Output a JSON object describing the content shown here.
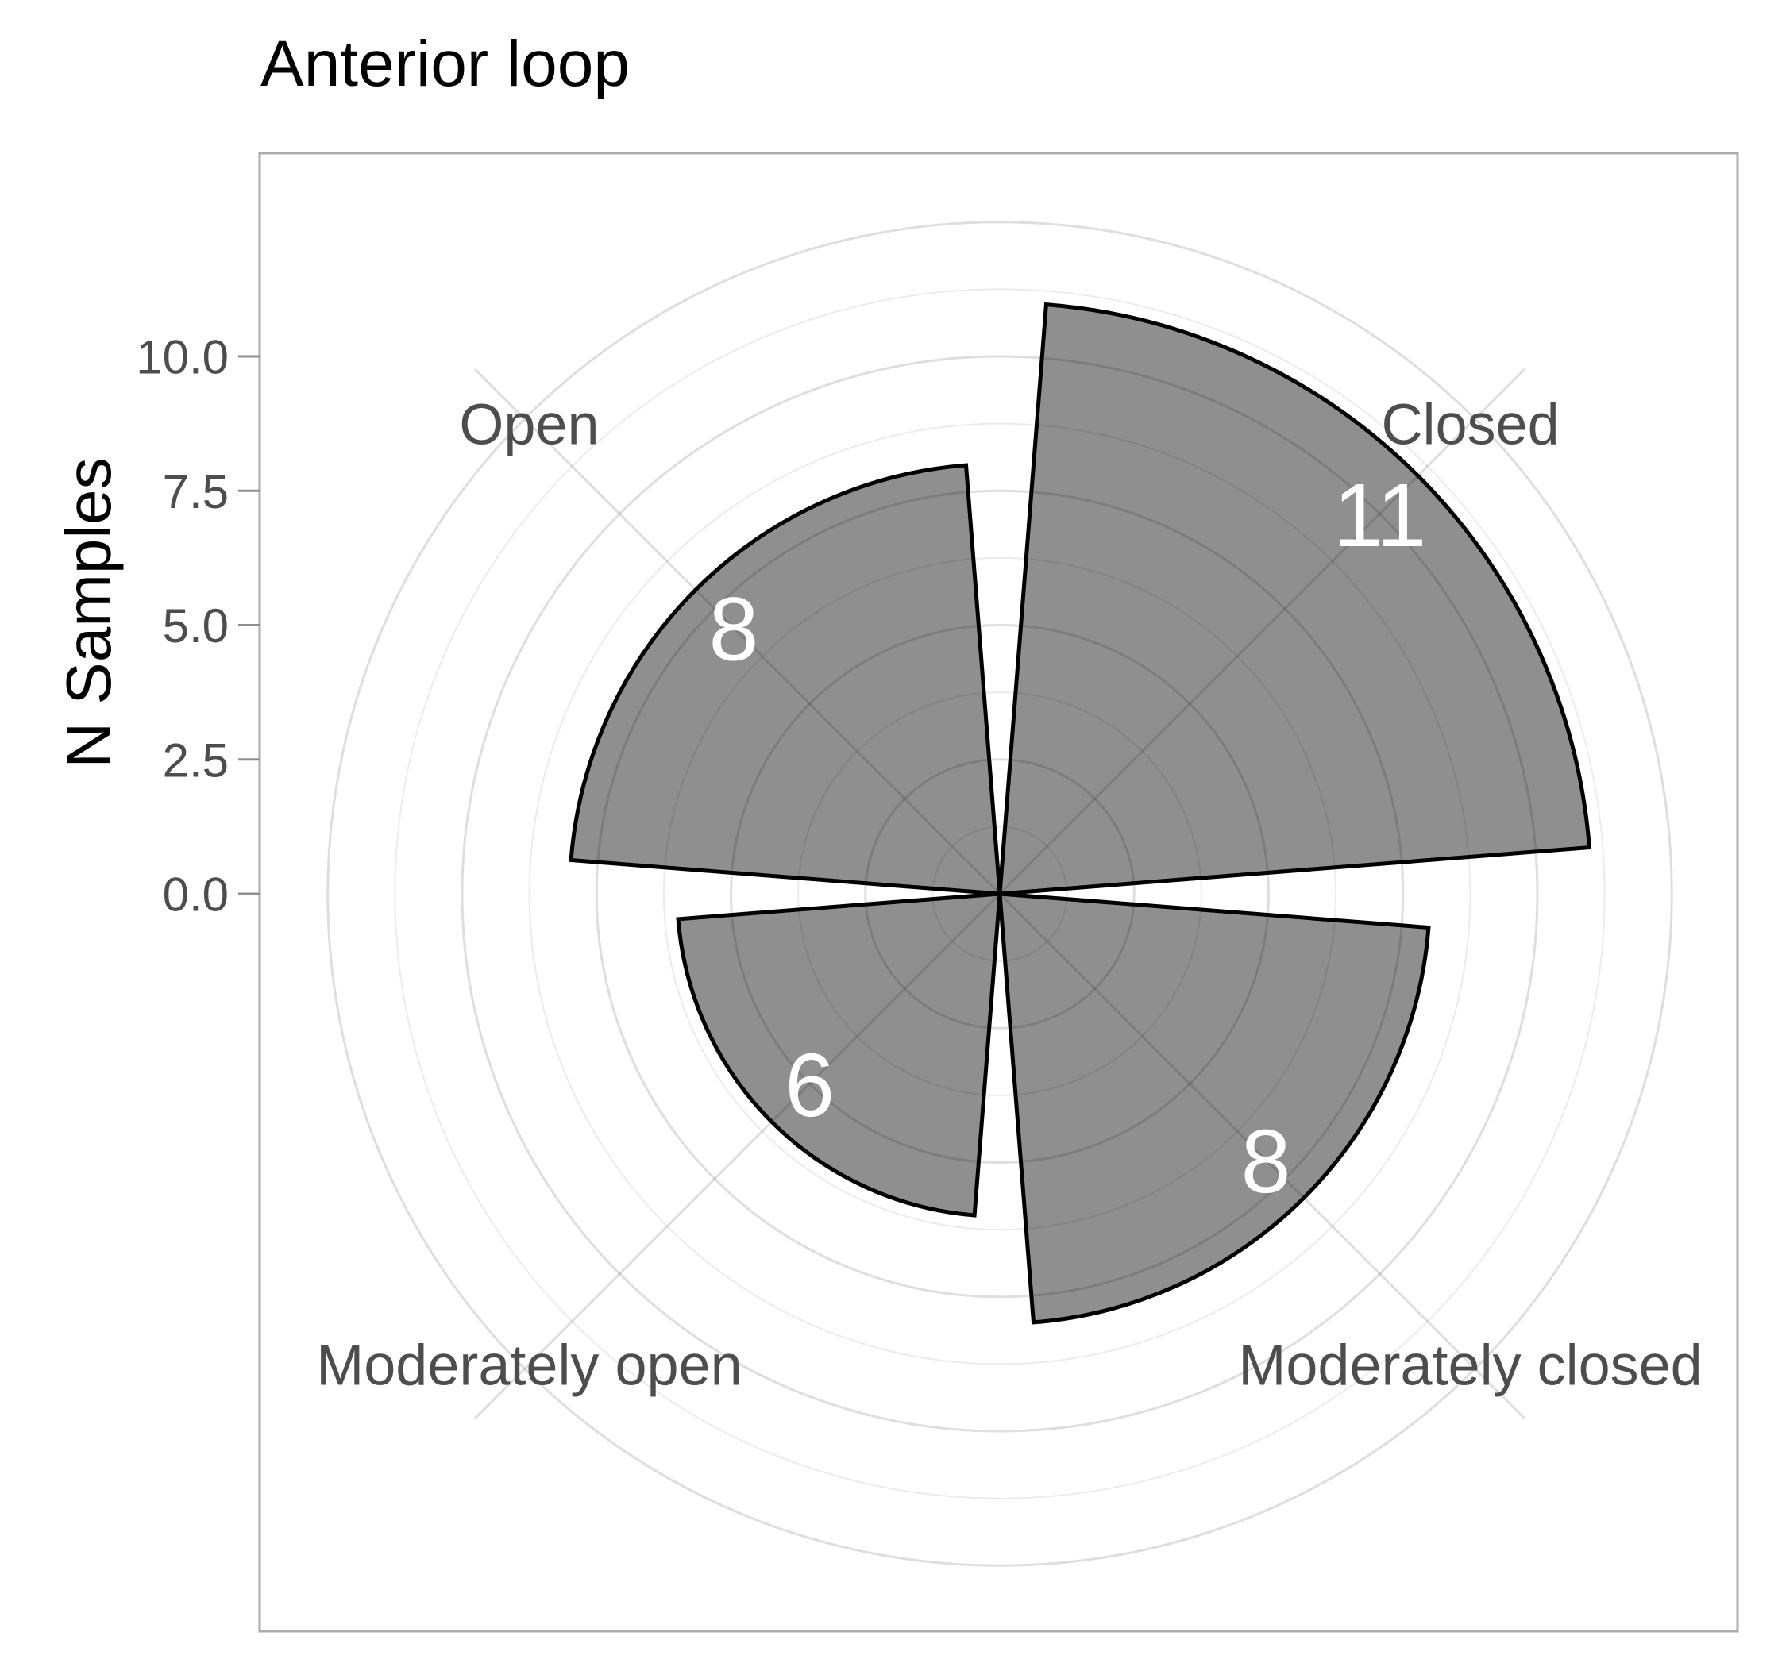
{
  "chart_data": {
    "type": "bar",
    "coord": "polar",
    "title": "Anterior loop",
    "ylabel": "N Samples",
    "xlabel": "",
    "categories": [
      "Closed",
      "Moderately closed",
      "Moderately open",
      "Open"
    ],
    "values": [
      11,
      8,
      6,
      8
    ],
    "value_labels": [
      "11",
      "8",
      "6",
      "8"
    ],
    "category_angles_deg": [
      45,
      135,
      225,
      315
    ],
    "bar_angular_width_deg": 81,
    "r_axis": {
      "tick_values": [
        0,
        2.5,
        5,
        7.5,
        10
      ],
      "tick_labels": [
        "0.0",
        "2.5",
        "5.0",
        "7.5",
        "10.0"
      ],
      "major_gridlines": [
        2.5,
        5,
        7.5,
        10,
        12.5
      ],
      "minor_gridlines": [
        1.25,
        3.75,
        6.25,
        8.75,
        11.25
      ],
      "rlim": [
        0,
        13.8
      ]
    },
    "legend": "none",
    "grid": true,
    "notes": "rose / coxcomb chart; value labels drawn in white inside each wedge at radius value-1"
  },
  "colors": {
    "bar_fill": "#8F8F8F",
    "bar_stroke": "#000000",
    "value_label": "#FFFFFF",
    "axis_text": "#4D4D4D",
    "title_color": "#000000",
    "grid_major": "rgba(0,0,0,0.13)",
    "grid_minor": "rgba(0,0,0,0.08)",
    "panel_border": "#ADADAD",
    "tick_mark": "#8F8F8F",
    "panel_background": "#FFFFFF"
  }
}
